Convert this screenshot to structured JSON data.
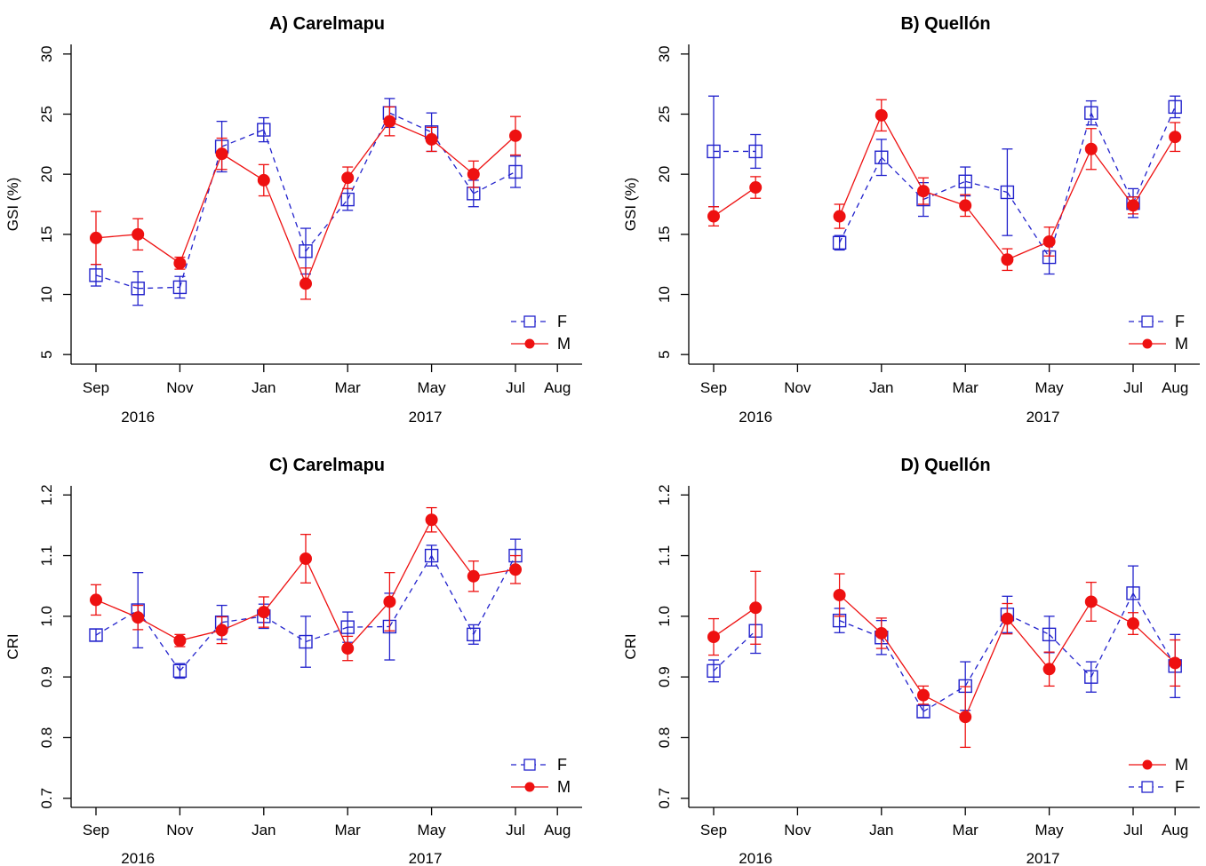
{
  "colors": {
    "F": "#2222cc",
    "M": "#ee1111",
    "axis": "#000000"
  },
  "x_axis": {
    "tick_labels": [
      "Sep",
      "Nov",
      "Jan",
      "Mar",
      "May",
      "Jul",
      "Aug"
    ],
    "year_labels": [
      "2016",
      "2017"
    ]
  },
  "chart_data": [
    {
      "type": "line",
      "title": "A) Carelmapu",
      "ylabel": "GSI (%)",
      "ylim": [
        4.2,
        30.8
      ],
      "yticks": [
        5,
        10,
        15,
        20,
        25,
        30
      ],
      "legend_placement": "bottom-right",
      "legend_order": [
        "F",
        "M"
      ],
      "x": [
        "Sep 2016",
        "Oct 2016",
        "Nov 2016",
        "Dec 2016",
        "Jan 2017",
        "Feb 2017",
        "Mar 2017",
        "Apr 2017",
        "May 2017",
        "Jun 2017",
        "Jul 2017"
      ],
      "series": [
        {
          "name": "F",
          "marker": "open-square",
          "line": "dashed",
          "values": [
            11.6,
            10.5,
            10.6,
            22.3,
            23.7,
            13.6,
            17.9,
            25.1,
            23.5,
            18.4,
            20.2
          ],
          "err": [
            0.9,
            1.4,
            0.9,
            2.1,
            1.0,
            1.9,
            0.9,
            1.2,
            1.6,
            1.1,
            1.3
          ]
        },
        {
          "name": "M",
          "marker": "filled-circle",
          "line": "solid",
          "values": [
            14.7,
            15.0,
            12.6,
            21.7,
            19.5,
            10.9,
            19.7,
            24.4,
            22.9,
            20.0,
            23.2
          ],
          "err": [
            2.2,
            1.3,
            0.5,
            1.3,
            1.3,
            1.3,
            0.9,
            1.2,
            1.0,
            1.1,
            1.6
          ]
        }
      ]
    },
    {
      "type": "line",
      "title": "B) Quellón",
      "ylabel": "GSI (%)",
      "ylim": [
        4.2,
        30.8
      ],
      "yticks": [
        5,
        10,
        15,
        20,
        25,
        30
      ],
      "legend_placement": "bottom-right",
      "legend_order": [
        "F",
        "M"
      ],
      "x": [
        "Sep 2016",
        "Oct 2016",
        "Dec 2016",
        "Jan 2017",
        "Feb 2017",
        "Mar 2017",
        "Apr 2017",
        "May 2017",
        "Jun 2017",
        "Jul 2017",
        "Aug 2017"
      ],
      "series": [
        {
          "name": "F",
          "marker": "open-square",
          "line": "dashed",
          "values": [
            21.9,
            21.9,
            14.3,
            21.4,
            17.9,
            19.4,
            18.5,
            13.1,
            25.1,
            17.6,
            25.6
          ],
          "err": [
            4.6,
            1.4,
            0.6,
            1.5,
            1.4,
            1.2,
            3.6,
            1.4,
            1.0,
            1.2,
            0.9
          ]
        },
        {
          "name": "M",
          "marker": "filled-circle",
          "line": "solid",
          "values": [
            16.5,
            18.9,
            16.5,
            24.9,
            18.6,
            17.4,
            12.9,
            14.4,
            22.1,
            17.4,
            23.1
          ],
          "err": [
            0.8,
            0.9,
            1.0,
            1.3,
            1.1,
            0.9,
            0.9,
            1.2,
            1.7,
            0.7,
            1.2
          ]
        }
      ]
    },
    {
      "type": "line",
      "title": "C) Carelmapu",
      "ylabel": "CRI",
      "ylim": [
        0.685,
        1.215
      ],
      "yticks": [
        0.7,
        0.8,
        0.9,
        1.0,
        1.1,
        1.2
      ],
      "ytick_labels": [
        "0.7",
        "0.8",
        "0.9",
        "1.0",
        "1.1",
        "1.2"
      ],
      "legend_placement": "bottom-right",
      "legend_order": [
        "F",
        "M"
      ],
      "x": [
        "Sep 2016",
        "Oct 2016",
        "Nov 2016",
        "Dec 2016",
        "Jan 2017",
        "Feb 2017",
        "Mar 2017",
        "Apr 2017",
        "May 2017",
        "Jun 2017",
        "Jul 2017"
      ],
      "series": [
        {
          "name": "F",
          "marker": "open-square",
          "line": "dashed",
          "values": [
            0.969,
            1.01,
            0.91,
            0.99,
            1.0,
            0.958,
            0.982,
            0.983,
            1.1,
            0.97,
            1.1
          ],
          "err": [
            0.01,
            0.062,
            0.012,
            0.028,
            0.02,
            0.042,
            0.025,
            0.055,
            0.017,
            0.016,
            0.027
          ]
        },
        {
          "name": "M",
          "marker": "filled-circle",
          "line": "solid",
          "values": [
            1.027,
            0.998,
            0.96,
            0.977,
            1.007,
            1.095,
            0.947,
            1.024,
            1.159,
            1.066,
            1.077
          ],
          "err": [
            0.025,
            0.02,
            0.01,
            0.022,
            0.025,
            0.04,
            0.02,
            0.048,
            0.02,
            0.025,
            0.023
          ]
        }
      ]
    },
    {
      "type": "line",
      "title": "D) Quellón",
      "ylabel": "CRI",
      "ylim": [
        0.685,
        1.215
      ],
      "yticks": [
        0.7,
        0.8,
        0.9,
        1.0,
        1.1,
        1.2
      ],
      "ytick_labels": [
        "0.7",
        "0.8",
        "0.9",
        "1.0",
        "1.1",
        "1.2"
      ],
      "legend_placement": "bottom-right",
      "legend_order": [
        "M",
        "F"
      ],
      "x": [
        "Sep 2016",
        "Oct 2016",
        "Dec 2016",
        "Jan 2017",
        "Feb 2017",
        "Mar 2017",
        "Apr 2017",
        "May 2017",
        "Jun 2017",
        "Jul 2017",
        "Aug 2017"
      ],
      "series": [
        {
          "name": "F",
          "marker": "open-square",
          "line": "dashed",
          "values": [
            0.91,
            0.976,
            0.993,
            0.965,
            0.843,
            0.885,
            1.003,
            0.97,
            0.9,
            1.038,
            0.918
          ],
          "err": [
            0.018,
            0.037,
            0.02,
            0.028,
            0.01,
            0.04,
            0.03,
            0.03,
            0.025,
            0.045,
            0.052
          ]
        },
        {
          "name": "M",
          "marker": "filled-circle",
          "line": "solid",
          "values": [
            0.966,
            1.014,
            1.035,
            0.972,
            0.87,
            0.834,
            0.996,
            0.913,
            1.024,
            0.988,
            0.923
          ],
          "err": [
            0.03,
            0.06,
            0.035,
            0.025,
            0.015,
            0.05,
            0.025,
            0.028,
            0.032,
            0.018,
            0.038
          ]
        }
      ]
    }
  ]
}
